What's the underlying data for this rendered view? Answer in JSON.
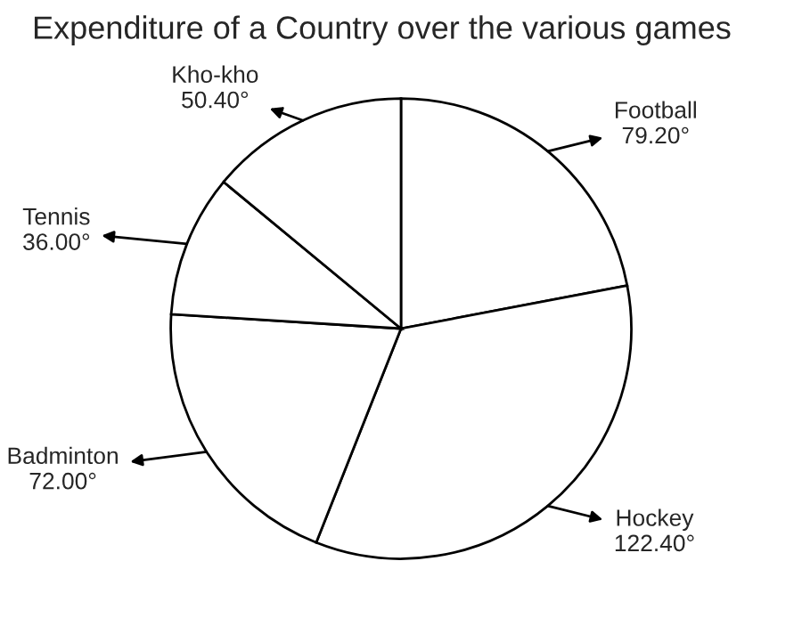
{
  "chart_data": {
    "type": "pie",
    "title": "Expenditure of a Country over the various games",
    "categories": [
      "Football",
      "Hockey",
      "Badminton",
      "Tennis",
      "Kho-kho"
    ],
    "values": [
      79.2,
      122.4,
      72.0,
      36.0,
      50.4
    ],
    "value_labels": [
      "79.20°",
      "122.40°",
      "72.00°",
      "36.00°",
      "50.40°"
    ],
    "colors": [
      "#ffffff",
      "#ffffff",
      "#ffffff",
      "#ffffff",
      "#ffffff"
    ]
  }
}
